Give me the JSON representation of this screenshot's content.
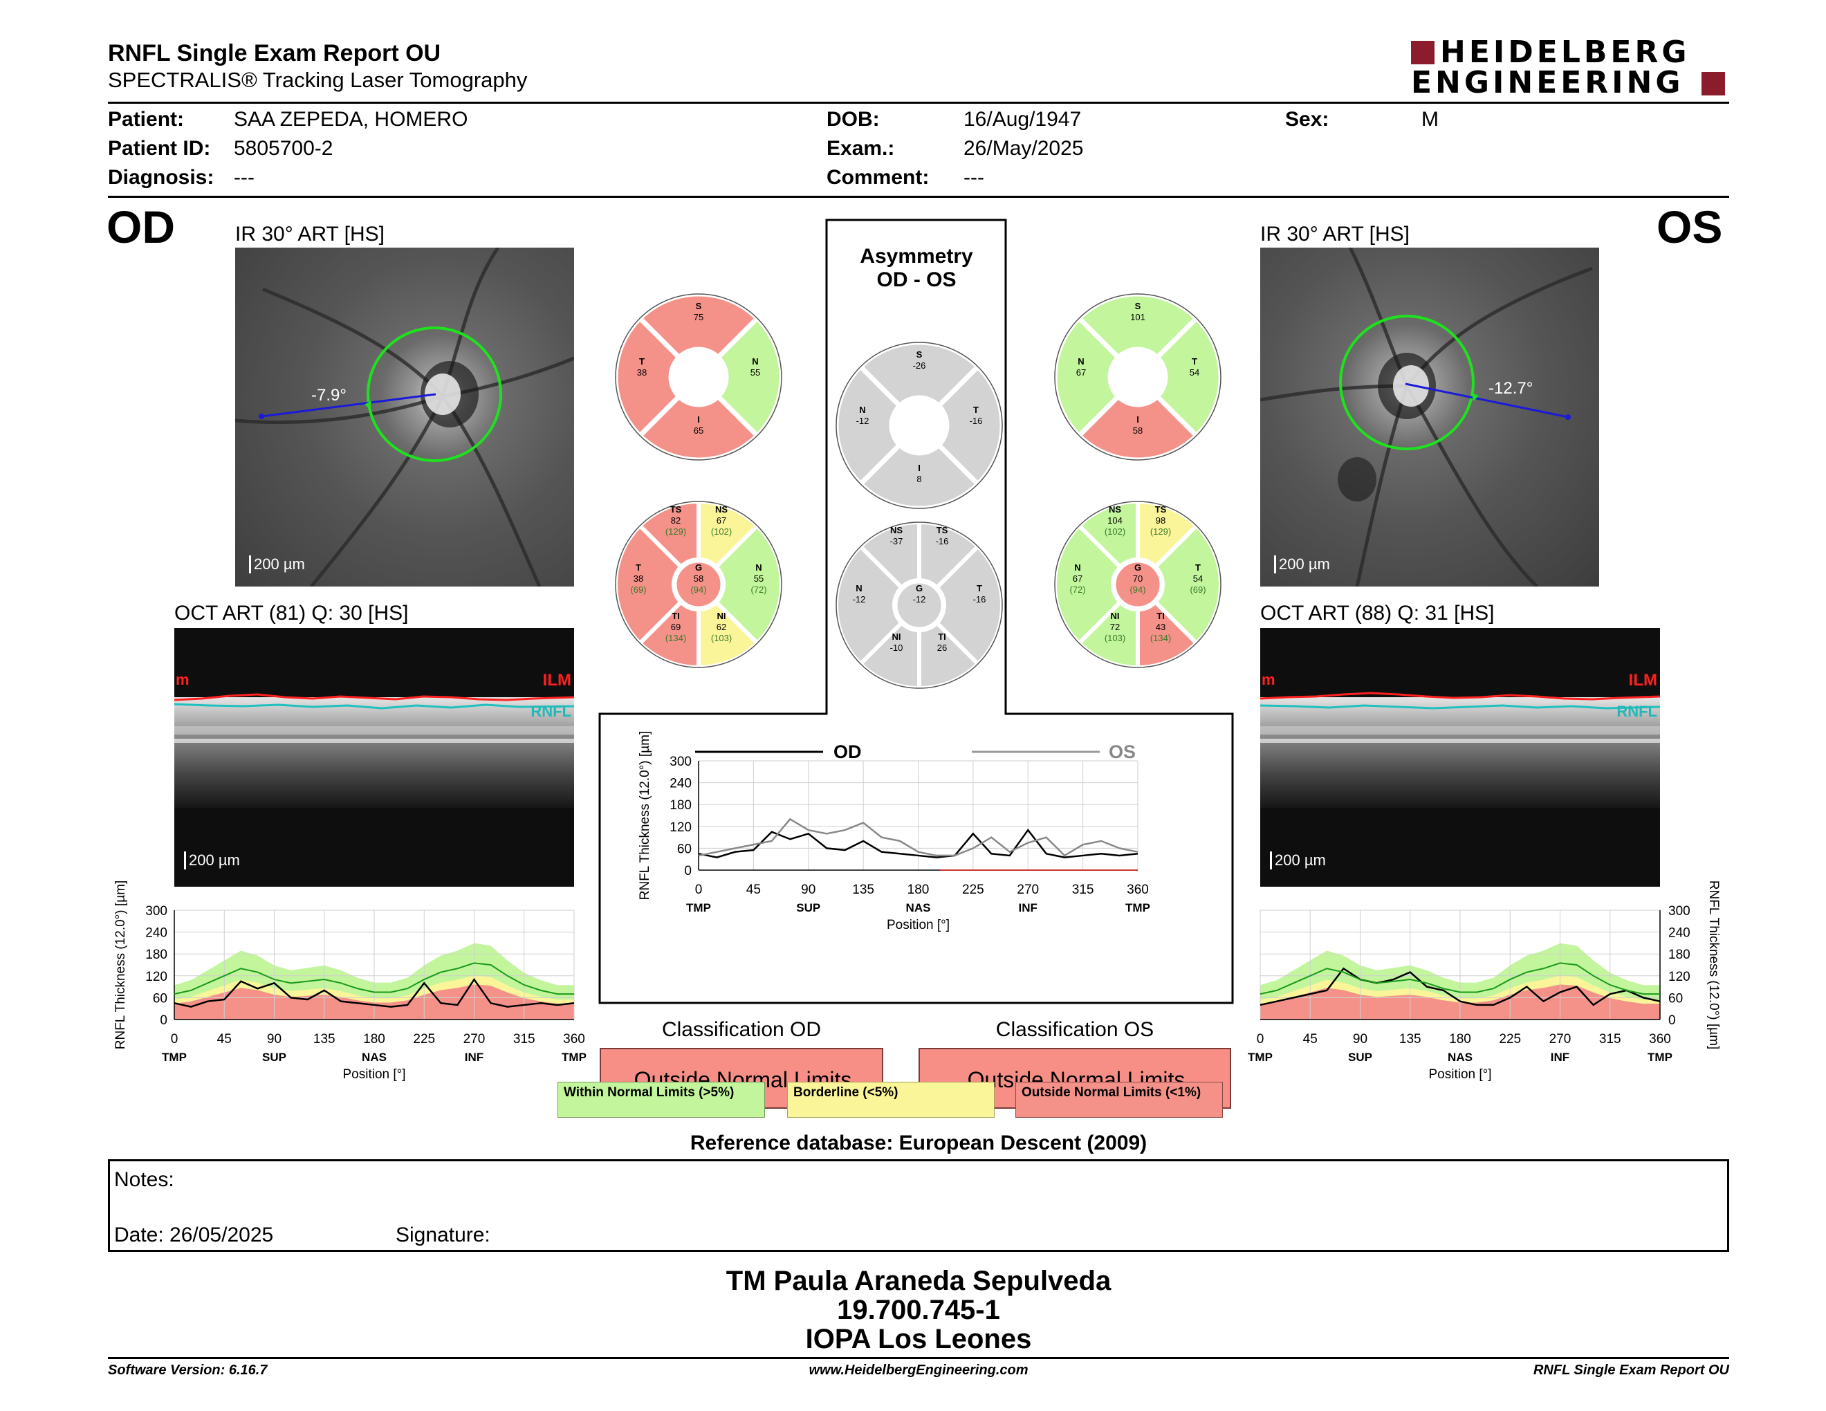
{
  "header": {
    "title": "RNFL Single Exam Report OU",
    "subtitle": "SPECTRALIS® Tracking Laser Tomography",
    "logo_line1": "HEIDELBERG",
    "logo_line2": "ENGINEERING"
  },
  "patient": {
    "patient_label": "Patient:",
    "patient_value": "SAA ZEPEDA, HOMERO",
    "id_label": "Patient ID:",
    "id_value": "5805700-2",
    "diagnosis_label": "Diagnosis:",
    "diagnosis_value": "---",
    "dob_label": "DOB:",
    "dob_value": "16/Aug/1947",
    "exam_label": "Exam.:",
    "exam_value": "26/May/2025",
    "comment_label": "Comment:",
    "comment_value": "---",
    "sex_label": "Sex:",
    "sex_value": "M"
  },
  "od": {
    "eye": "OD",
    "ir_title": "IR 30° ART [HS]",
    "angle": "-7.9°",
    "scale_ir": "200 µm",
    "oct_title": "OCT ART (81) Q: 30 [HS]",
    "ilm": "ILM",
    "rnfl": "RNFL",
    "m": "m",
    "scale_oct": "200 µm",
    "classification_title": "Classification OD",
    "classification_value": "Outside Normal Limits"
  },
  "os": {
    "eye": "OS",
    "ir_title": "IR 30° ART [HS]",
    "angle": "-12.7°",
    "scale_ir": "200 µm",
    "oct_title": "OCT ART (88) Q: 31 [HS]",
    "ilm": "ILM",
    "rnfl": "RNFL",
    "m": "m",
    "scale_oct": "200 µm",
    "classification_title": "Classification OS",
    "classification_value": "Outside Normal Limits"
  },
  "asymmetry": {
    "title1": "Asymmetry",
    "title2": "OD - OS"
  },
  "sectors": {
    "od4": {
      "S": "75",
      "N": "55",
      "I": "65",
      "T": "38"
    },
    "od6": {
      "TS": "82",
      "TS_ref": "(129)",
      "NS": "67",
      "NS_ref": "(102)",
      "N": "55",
      "N_ref": "(72)",
      "NI": "62",
      "NI_ref": "(103)",
      "TI": "69",
      "TI_ref": "(134)",
      "T": "38",
      "T_ref": "(69)",
      "G": "58",
      "G_ref": "(94)"
    },
    "os4": {
      "S": "101",
      "T": "54",
      "I": "58",
      "N": "67"
    },
    "os6": {
      "NS": "104",
      "NS_ref": "(102)",
      "TS": "98",
      "TS_ref": "(129)",
      "T": "54",
      "T_ref": "(69)",
      "TI": "43",
      "TI_ref": "(134)",
      "NI": "72",
      "NI_ref": "(103)",
      "N": "67",
      "N_ref": "(72)",
      "G": "70",
      "G_ref": "(94)"
    },
    "asym4": {
      "S": "-26",
      "T": "-16",
      "I": "8",
      "N": "-12"
    },
    "asym6": {
      "NS": "-37",
      "TS": "-16",
      "T": "-16",
      "TI": "26",
      "NI": "-10",
      "N": "-12",
      "G": "-12"
    }
  },
  "sector_letters": {
    "S": "S",
    "N": "N",
    "I": "I",
    "T": "T",
    "TS": "TS",
    "NS": "NS",
    "NI": "NI",
    "TI": "TI",
    "G": "G"
  },
  "chart_data": [
    {
      "type": "line",
      "name": "combined",
      "legend": [
        "OD",
        "OS"
      ],
      "ylabel": "RNFL Thickness (12.0°) [µm]",
      "xlabel": "Position [°]",
      "ylim": [
        0,
        300
      ],
      "xlim": [
        0,
        360
      ],
      "yticks": [
        0,
        60,
        120,
        180,
        240,
        300
      ],
      "xticks": [
        0,
        45,
        90,
        135,
        180,
        225,
        270,
        315,
        360
      ],
      "xcats": [
        "TMP",
        "SUP",
        "NAS",
        "INF",
        "TMP"
      ],
      "x": [
        0,
        15,
        30,
        45,
        60,
        75,
        90,
        105,
        120,
        135,
        150,
        165,
        180,
        195,
        210,
        225,
        240,
        255,
        270,
        285,
        300,
        315,
        330,
        345,
        360
      ],
      "series": [
        {
          "name": "OD",
          "values": [
            45,
            35,
            50,
            55,
            105,
            85,
            100,
            60,
            55,
            80,
            50,
            45,
            40,
            35,
            40,
            100,
            45,
            40,
            110,
            45,
            35,
            40,
            45,
            40,
            45
          ]
        },
        {
          "name": "OS",
          "values": [
            40,
            50,
            60,
            70,
            80,
            140,
            110,
            100,
            110,
            130,
            90,
            80,
            50,
            40,
            40,
            60,
            90,
            50,
            75,
            90,
            40,
            70,
            80,
            60,
            50
          ]
        }
      ]
    },
    {
      "type": "line",
      "name": "od_profile",
      "ylabel": "RNFL Thickness (12.0°) [µm]",
      "xlabel": "Position [°]",
      "ylim": [
        0,
        300
      ],
      "yticks": [
        0,
        60,
        120,
        180,
        240,
        300
      ],
      "xticks": [
        0,
        45,
        90,
        135,
        180,
        225,
        270,
        315,
        360
      ],
      "xcats": [
        "TMP",
        "SUP",
        "NAS",
        "INF",
        "TMP"
      ],
      "x": [
        0,
        15,
        30,
        45,
        60,
        75,
        90,
        105,
        120,
        135,
        150,
        165,
        180,
        195,
        210,
        225,
        240,
        255,
        270,
        285,
        300,
        315,
        330,
        345,
        360
      ],
      "series": [
        {
          "name": "OD",
          "values": [
            45,
            35,
            50,
            55,
            105,
            85,
            100,
            60,
            55,
            80,
            50,
            45,
            40,
            35,
            40,
            100,
            45,
            40,
            110,
            45,
            35,
            40,
            45,
            40,
            45
          ]
        },
        {
          "name": "normal",
          "values": [
            70,
            80,
            100,
            120,
            140,
            130,
            110,
            100,
            105,
            110,
            100,
            85,
            75,
            75,
            85,
            110,
            130,
            140,
            155,
            150,
            120,
            95,
            80,
            70,
            70
          ]
        }
      ]
    },
    {
      "type": "line",
      "name": "os_profile",
      "ylabel": "RNFL Thickness (12.0°) [µm]",
      "xlabel": "Position [°]",
      "ylim": [
        0,
        300
      ],
      "yticks": [
        0,
        60,
        120,
        180,
        240,
        300
      ],
      "xticks": [
        0,
        45,
        90,
        135,
        180,
        225,
        270,
        315,
        360
      ],
      "xcats": [
        "TMP",
        "SUP",
        "NAS",
        "INF",
        "TMP"
      ],
      "x": [
        0,
        15,
        30,
        45,
        60,
        75,
        90,
        105,
        120,
        135,
        150,
        165,
        180,
        195,
        210,
        225,
        240,
        255,
        270,
        285,
        300,
        315,
        330,
        345,
        360
      ],
      "series": [
        {
          "name": "OS",
          "values": [
            40,
            50,
            60,
            70,
            80,
            140,
            110,
            100,
            110,
            130,
            90,
            80,
            50,
            40,
            40,
            60,
            90,
            50,
            75,
            90,
            40,
            70,
            80,
            60,
            50
          ]
        },
        {
          "name": "normal",
          "values": [
            70,
            80,
            100,
            120,
            140,
            130,
            110,
            100,
            105,
            110,
            100,
            85,
            75,
            75,
            85,
            110,
            130,
            140,
            155,
            150,
            120,
            95,
            80,
            70,
            70
          ]
        }
      ]
    }
  ],
  "legend": {
    "within": "Within Normal Limits (>5%)",
    "borderline": "Borderline (<5%)",
    "outside": "Outside Normal Limits (<1%)"
  },
  "reference": "Reference database: European Descent (2009)",
  "notes": {
    "notes_label": "Notes:",
    "date_label": "Date: 26/05/2025",
    "signature_label": "Signature:"
  },
  "signer": {
    "name": "TM Paula Araneda Sepulveda",
    "id": "19.700.745-1",
    "org": "IOPA Los Leones"
  },
  "footer": {
    "version": "Software Version: 6.16.7",
    "url": "www.HeidelbergEngineering.com",
    "report": "RNFL Single Exam Report OU"
  },
  "colors": {
    "green": "#c2f59c",
    "red": "#f4928a",
    "yellow": "#fbf59a",
    "gray": "#d3d3d3",
    "classification_red": "#f78f87"
  }
}
